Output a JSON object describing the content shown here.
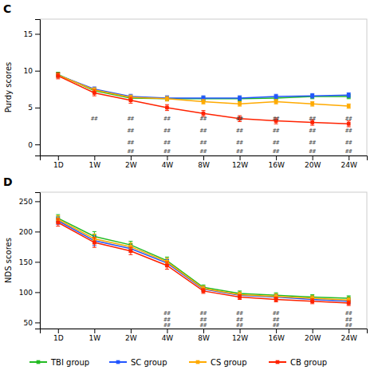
{
  "chart_data": [
    {
      "type": "line",
      "title": "C",
      "y_label": "Purdy scores",
      "categories": [
        "1D",
        "1W",
        "2W",
        "4W",
        "8W",
        "12W",
        "16W",
        "20W",
        "24W"
      ],
      "series": [
        {
          "name": "TBI group",
          "color": "#22bb22",
          "values": [
            9.5,
            7.3,
            6.3,
            6.2,
            6.2,
            6.2,
            6.3,
            6.5,
            6.5
          ],
          "errors": [
            0.3,
            0.3,
            0.3,
            0.3,
            0.3,
            0.3,
            0.3,
            0.3,
            0.3
          ]
        },
        {
          "name": "SC group",
          "color": "#2255ff",
          "values": [
            9.4,
            7.5,
            6.5,
            6.3,
            6.3,
            6.3,
            6.5,
            6.6,
            6.7
          ],
          "errors": [
            0.3,
            0.3,
            0.3,
            0.3,
            0.3,
            0.3,
            0.3,
            0.3,
            0.3
          ]
        },
        {
          "name": "CS group",
          "color": "#ffaa00",
          "values": [
            9.4,
            7.4,
            6.4,
            6.2,
            5.8,
            5.5,
            5.8,
            5.5,
            5.2
          ],
          "errors": [
            0.3,
            0.3,
            0.3,
            0.3,
            0.3,
            0.3,
            0.3,
            0.3,
            0.3
          ]
        },
        {
          "name": "CB group",
          "color": "#ff2200",
          "values": [
            9.3,
            7.0,
            6.0,
            5.0,
            4.2,
            3.5,
            3.2,
            3.0,
            2.8
          ],
          "errors": [
            0.4,
            0.4,
            0.4,
            0.4,
            0.4,
            0.4,
            0.4,
            0.4,
            0.4
          ]
        }
      ],
      "ylim": [
        -1.5,
        17
      ],
      "yticks": [
        0,
        5,
        10,
        15
      ],
      "marker": "square",
      "line_style": "solid",
      "grid": false,
      "annotations": [
        {
          "text": "##",
          "x": "1W",
          "y": 3.5
        },
        {
          "text": "##",
          "x": "2W",
          "y": 3.5
        },
        {
          "text": "##",
          "x": "4W",
          "y": 3.5
        },
        {
          "text": "##",
          "x": "8W",
          "y": 3.5
        },
        {
          "text": "##",
          "x": "12W",
          "y": 3.5
        },
        {
          "text": "##",
          "x": "16W",
          "y": 3.5
        },
        {
          "text": "##",
          "x": "20W",
          "y": 3.5
        },
        {
          "text": "##",
          "x": "24W",
          "y": 3.5
        },
        {
          "text": "##",
          "x": "2W",
          "y": 1.8
        },
        {
          "text": "##",
          "x": "4W",
          "y": 1.8
        },
        {
          "text": "##",
          "x": "8W",
          "y": 1.8
        },
        {
          "text": "##",
          "x": "12W",
          "y": 1.8
        },
        {
          "text": "##",
          "x": "16W",
          "y": 1.8
        },
        {
          "text": "##",
          "x": "20W",
          "y": 1.8
        },
        {
          "text": "##",
          "x": "24W",
          "y": 1.8
        },
        {
          "text": "##",
          "x": "2W",
          "y": 0.2
        },
        {
          "text": "##",
          "x": "4W",
          "y": 0.2
        },
        {
          "text": "##",
          "x": "8W",
          "y": 0.2
        },
        {
          "text": "##",
          "x": "12W",
          "y": 0.2
        },
        {
          "text": "##",
          "x": "16W",
          "y": 0.2
        },
        {
          "text": "##",
          "x": "20W",
          "y": 0.2
        },
        {
          "text": "##",
          "x": "24W",
          "y": 0.2
        },
        {
          "text": "##",
          "x": "2W",
          "y": -1.0
        },
        {
          "text": "##",
          "x": "4W",
          "y": -1.0
        },
        {
          "text": "##",
          "x": "8W",
          "y": -1.0
        },
        {
          "text": "##",
          "x": "12W",
          "y": -1.0
        },
        {
          "text": "##",
          "x": "16W",
          "y": -1.0
        },
        {
          "text": "##",
          "x": "20W",
          "y": -1.0
        },
        {
          "text": "##",
          "x": "24W",
          "y": -1.0
        }
      ]
    },
    {
      "type": "line",
      "title": "D",
      "y_label": "NDS scores",
      "categories": [
        "1D",
        "1W",
        "2W",
        "4W",
        "8W",
        "12W",
        "16W",
        "20W",
        "24W"
      ],
      "series": [
        {
          "name": "TBI group",
          "color": "#22bb22",
          "values": [
            222,
            192,
            178,
            152,
            108,
            98,
            95,
            92,
            90
          ],
          "errors": [
            6,
            8,
            6,
            6,
            4,
            4,
            4,
            4,
            4
          ]
        },
        {
          "name": "SC group",
          "color": "#2255ff",
          "values": [
            218,
            185,
            172,
            148,
            105,
            95,
            92,
            88,
            85
          ],
          "errors": [
            6,
            8,
            6,
            6,
            4,
            4,
            4,
            4,
            4
          ]
        },
        {
          "name": "CS group",
          "color": "#ffaa00",
          "values": [
            220,
            188,
            175,
            150,
            106,
            96,
            93,
            90,
            87
          ],
          "errors": [
            6,
            8,
            6,
            6,
            4,
            4,
            4,
            4,
            4
          ]
        },
        {
          "name": "CB group",
          "color": "#ff2200",
          "values": [
            215,
            182,
            168,
            144,
            102,
            92,
            88,
            85,
            82
          ],
          "errors": [
            6,
            8,
            6,
            6,
            4,
            4,
            4,
            4,
            4
          ]
        }
      ],
      "ylim": [
        40,
        265
      ],
      "yticks": [
        50,
        100,
        150,
        200,
        250
      ],
      "marker": "square",
      "line_style": "solid",
      "grid": false,
      "legend": "bottom",
      "annotations": [
        {
          "text": "##",
          "x": "4W",
          "y": 65
        },
        {
          "text": "##",
          "x": "8W",
          "y": 65
        },
        {
          "text": "##",
          "x": "12W",
          "y": 65
        },
        {
          "text": "##",
          "x": "16W",
          "y": 65
        },
        {
          "text": "##",
          "x": "24W",
          "y": 65
        },
        {
          "text": "##",
          "x": "4W",
          "y": 55
        },
        {
          "text": "##",
          "x": "8W",
          "y": 55
        },
        {
          "text": "##",
          "x": "12W",
          "y": 55
        },
        {
          "text": "##",
          "x": "16W",
          "y": 55
        },
        {
          "text": "##",
          "x": "24W",
          "y": 55
        },
        {
          "text": "##",
          "x": "4W",
          "y": 45
        },
        {
          "text": "##",
          "x": "8W",
          "y": 45
        },
        {
          "text": "##",
          "x": "12W",
          "y": 45
        },
        {
          "text": "##",
          "x": "16W",
          "y": 45
        },
        {
          "text": "##",
          "x": "24W",
          "y": 45
        }
      ]
    }
  ]
}
